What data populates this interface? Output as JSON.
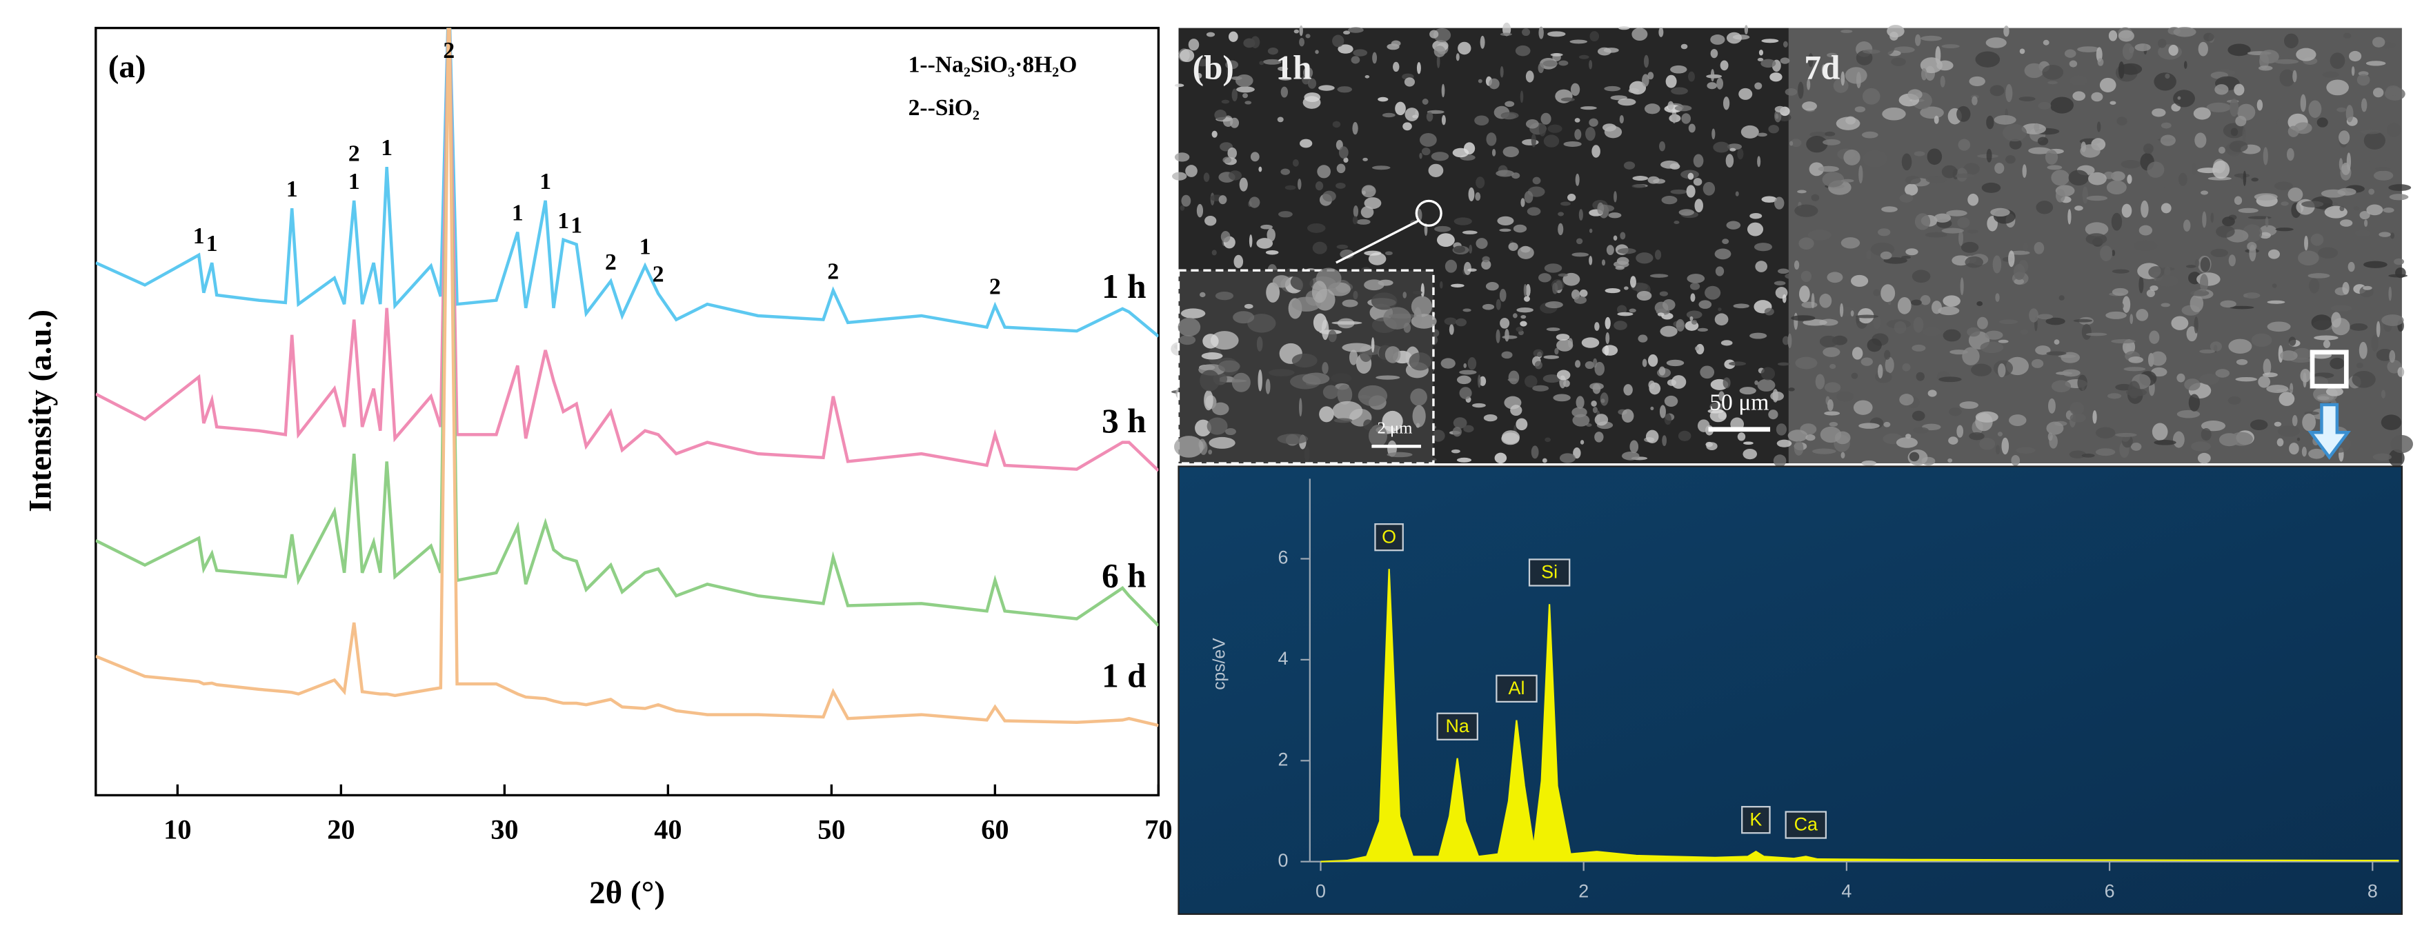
{
  "chart_data": [
    {
      "type": "line",
      "panel_label": "(a)",
      "xlabel": "2θ (°)",
      "ylabel": "Intensity (a.u.)",
      "legend_lines": [
        "1--Na₂SiO₃·8H₂O",
        "2--SiO₂"
      ],
      "xlim": [
        5,
        70
      ],
      "xticks": [
        10,
        20,
        30,
        40,
        50,
        60,
        70
      ],
      "ylim": [
        0,
        100
      ],
      "x": [
        5,
        8,
        11.3,
        11.6,
        12.1,
        12.4,
        15,
        16.6,
        17.0,
        17.4,
        19.6,
        20.2,
        20.8,
        21.3,
        22.0,
        22.4,
        22.8,
        23.3,
        25.5,
        26.1,
        26.6,
        27.1,
        29.5,
        30.8,
        31.3,
        32.5,
        33.0,
        33.6,
        34.4,
        35.0,
        36.5,
        37.2,
        38.6,
        39.4,
        40.5,
        42.4,
        45.5,
        49.5,
        50.1,
        51,
        55.5,
        59.5,
        60.0,
        60.6,
        65,
        67.8,
        68.2,
        70
      ],
      "series": [
        {
          "name": "1 h",
          "color": "#5cc8f0",
          "values": [
            69.4,
            66.5,
            70.4,
            65.5,
            69.4,
            65.2,
            64.5,
            64.2,
            76.5,
            64,
            67.4,
            64,
            77.5,
            64,
            69.4,
            64,
            81.9,
            63.8,
            69,
            65,
            105,
            64,
            64.5,
            73.4,
            63.5,
            77.5,
            63.5,
            72.4,
            71.8,
            62.8,
            67,
            62.5,
            69,
            65.4,
            62,
            64,
            62.5,
            62,
            65.8,
            61.6,
            62.5,
            61,
            63.8,
            61,
            60.5,
            63.4,
            63,
            59.8
          ]
        },
        {
          "name": "3 h",
          "color": "#f08cb4",
          "values": [
            52.3,
            49,
            54.5,
            48.5,
            51.5,
            48,
            47.5,
            47,
            60,
            47,
            53,
            48,
            62,
            48,
            53,
            47.5,
            63.5,
            46.5,
            52,
            48,
            105,
            47,
            47,
            56,
            46.5,
            58,
            54,
            50,
            51,
            45.5,
            50,
            45,
            47.5,
            47,
            44.5,
            46,
            44.5,
            44,
            52,
            43.5,
            44.5,
            43,
            47,
            43,
            42.5,
            46,
            46,
            42.3
          ]
        },
        {
          "name": "6 h",
          "color": "#8fcf86",
          "values": [
            33.2,
            30,
            33.5,
            29.5,
            31.5,
            29.3,
            28.8,
            28.5,
            34,
            28,
            37,
            29,
            44.5,
            29,
            33,
            29,
            43.5,
            28.5,
            32.5,
            29,
            105,
            28,
            29,
            35,
            27.5,
            35.5,
            32,
            31,
            30.5,
            26.8,
            30,
            26.5,
            29,
            29.5,
            26,
            27.5,
            26,
            25,
            31,
            24.7,
            25,
            24,
            28,
            24,
            23,
            27,
            26,
            22.1
          ]
        },
        {
          "name": "1 d",
          "color": "#f5bf8a",
          "values": [
            18.1,
            15.5,
            14.8,
            14.5,
            14.6,
            14.4,
            13.8,
            13.5,
            13.4,
            13.2,
            15,
            13.5,
            22.5,
            13.5,
            13.3,
            13.2,
            13.2,
            13,
            13.8,
            14,
            105,
            14.5,
            14.5,
            13.2,
            12.8,
            12.6,
            12.3,
            12,
            12,
            11.8,
            12.5,
            11.5,
            11.3,
            11.8,
            11,
            10.5,
            10.5,
            10.2,
            13.5,
            10,
            10.5,
            9.8,
            11.5,
            9.7,
            9.5,
            9.8,
            10,
            9.1
          ]
        }
      ],
      "annotations": [
        {
          "text": "1",
          "x": 11.3
        },
        {
          "text": "1",
          "x": 12.1
        },
        {
          "text": "1",
          "x": 17.0
        },
        {
          "text": "1",
          "x": 20.8
        },
        {
          "text": "2",
          "x": 20.8
        },
        {
          "text": "1",
          "x": 22.8
        },
        {
          "text": "2",
          "x": 26.6
        },
        {
          "text": "1",
          "x": 30.8
        },
        {
          "text": "1",
          "x": 32.5
        },
        {
          "text": "1",
          "x": 33.6
        },
        {
          "text": "1",
          "x": 34.4
        },
        {
          "text": "2",
          "x": 36.5
        },
        {
          "text": "1",
          "x": 38.6
        },
        {
          "text": "2",
          "x": 39.4
        },
        {
          "text": "2",
          "x": 50.1
        },
        {
          "text": "2",
          "x": 60.0
        }
      ]
    },
    {
      "type": "area",
      "ylabel": "cps/eV",
      "xlim": [
        0,
        8.2
      ],
      "xticks": [
        0,
        2,
        4,
        6,
        8
      ],
      "ylim": [
        0,
        7.6
      ],
      "yticks": [
        0,
        2,
        4,
        6
      ],
      "color": "#f2f200",
      "x": [
        0,
        0.2,
        0.35,
        0.45,
        0.52,
        0.6,
        0.7,
        0.9,
        0.98,
        1.04,
        1.1,
        1.2,
        1.35,
        1.43,
        1.49,
        1.55,
        1.62,
        1.68,
        1.74,
        1.8,
        1.9,
        2.1,
        2.4,
        3.0,
        3.25,
        3.31,
        3.37,
        3.6,
        3.69,
        3.78,
        4.5,
        6,
        8.2
      ],
      "values": [
        0,
        0.02,
        0.1,
        0.8,
        5.8,
        0.9,
        0.1,
        0.1,
        0.9,
        2.05,
        0.8,
        0.1,
        0.15,
        1.2,
        2.8,
        1.5,
        0.3,
        1.6,
        5.1,
        1.5,
        0.15,
        0.2,
        0.12,
        0.08,
        0.1,
        0.2,
        0.1,
        0.06,
        0.1,
        0.05,
        0.04,
        0.03,
        0.02
      ],
      "annotations": [
        {
          "text": "O",
          "x": 0.52
        },
        {
          "text": "Na",
          "x": 1.04
        },
        {
          "text": "Al",
          "x": 1.49
        },
        {
          "text": "Si",
          "x": 1.74
        },
        {
          "text": "K",
          "x": 3.31
        },
        {
          "text": "Ca",
          "x": 3.69
        }
      ]
    }
  ],
  "sem_panel": {
    "panel_label": "(b)",
    "left_label": "1h",
    "right_label": "7d",
    "scale_bar": "50 μm",
    "inset_scale_bar": "2 μm"
  }
}
